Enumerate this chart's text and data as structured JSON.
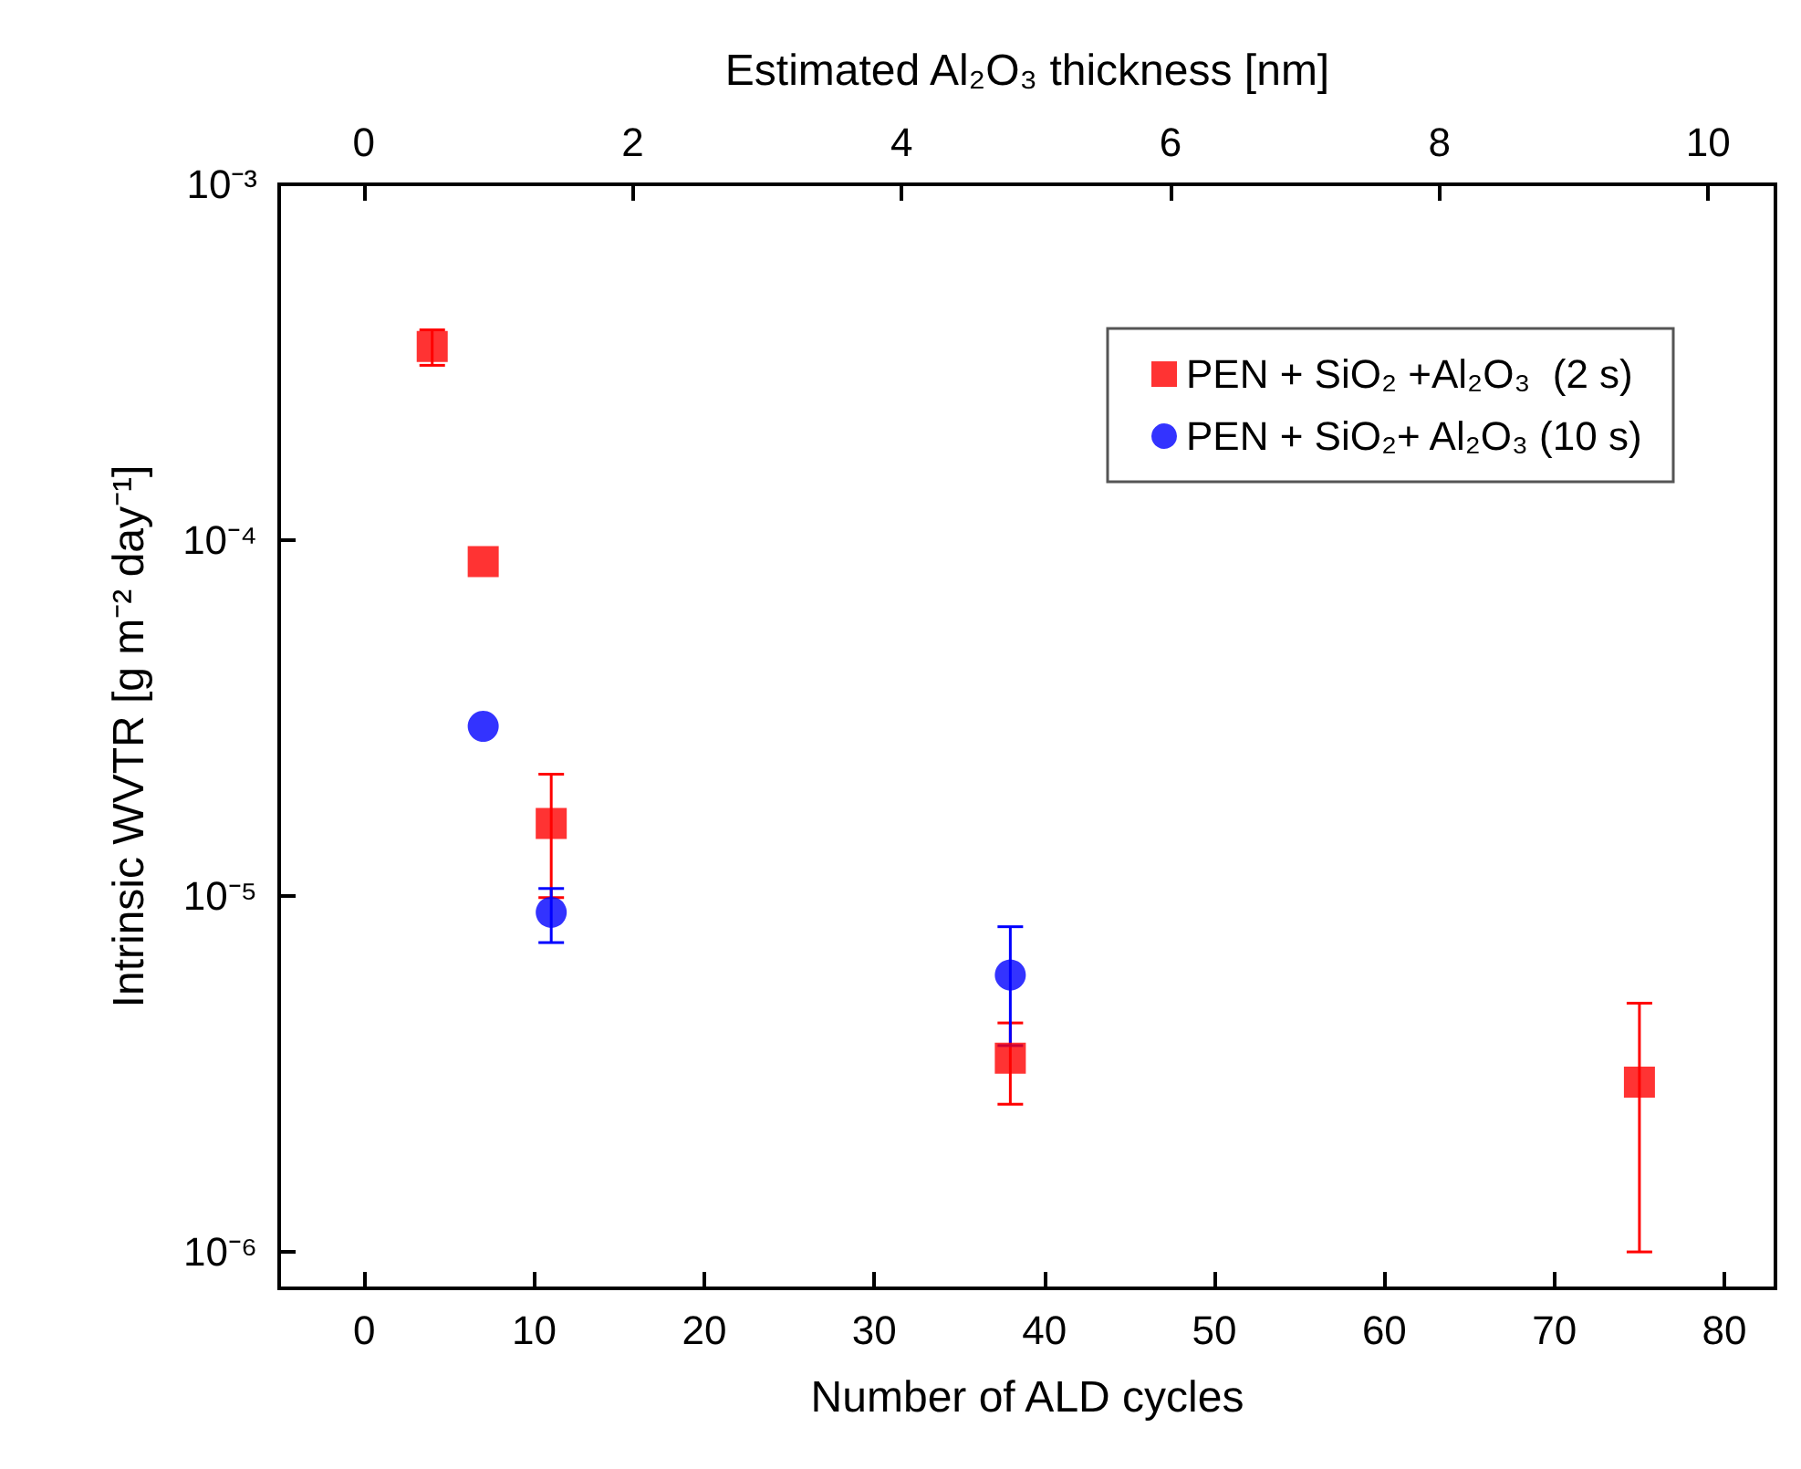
{
  "chart_data": {
    "type": "scatter",
    "xlabel": "Number of ALD cycles",
    "ylabel": "Intrinsic WVTR [g m⁻² day⁻¹]",
    "x2label": "Estimated Al₂O₃ thickness [nm]",
    "xlim": [
      -5,
      83
    ],
    "xticks": [
      0,
      10,
      20,
      30,
      40,
      50,
      60,
      70,
      80
    ],
    "x2lim": [
      -0.63,
      10.5
    ],
    "x2ticks": [
      0,
      2,
      4,
      6,
      8,
      10
    ],
    "ylim": [
      7.9e-07,
      0.001
    ],
    "log": "y",
    "yticks": [
      {
        "value": 0.001,
        "label": "10⁻³"
      },
      {
        "value": 0.0001,
        "label": "10⁻⁴"
      },
      {
        "value": 1e-05,
        "label": "10⁻⁵"
      },
      {
        "value": 1e-06,
        "label": "10⁻⁶"
      }
    ],
    "grid": false,
    "legend": "top right",
    "series": [
      {
        "name": "PEN + SiO₂ +Al₂O₃  (2 s)",
        "color": "#ff0000",
        "marker": "square",
        "x": [
          4,
          7,
          11,
          38,
          75
        ],
        "values": [
          0.00035,
          8.7e-05,
          1.6e-05,
          3.5e-06,
          3e-06
        ],
        "errors": [
          [
            0.00031,
            0.00039
          ],
          null,
          [
            9.9e-06,
            2.2e-05
          ],
          [
            2.6e-06,
            4.4e-06
          ],
          [
            1e-06,
            5e-06
          ]
        ]
      },
      {
        "name": "PEN + SiO₂+ Al₂O₃ (10 s)",
        "color": "#0000ff",
        "marker": "circle",
        "x": [
          7,
          11,
          38
        ],
        "values": [
          3e-05,
          9e-06,
          6e-06
        ],
        "errors": [
          null,
          [
            7.4e-06,
            1.05e-05
          ],
          [
            3.8e-06,
            8.2e-06
          ]
        ]
      }
    ]
  }
}
